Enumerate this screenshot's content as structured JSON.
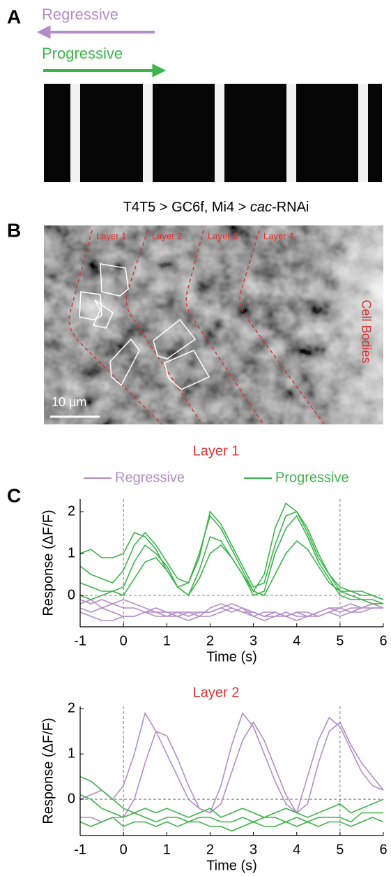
{
  "panel_a": {
    "label": "A",
    "regressive": "Regressive",
    "progressive": "Progressive",
    "regressive_color": "#b48cc8",
    "progressive_color": "#3cb44a"
  },
  "panel_b": {
    "label": "B",
    "title_prefix": "T4T5 > GC6f, Mi4 > ",
    "title_italic": "cac",
    "title_suffix": "-RNAi",
    "layers": [
      "Layer 1",
      "Layer 2",
      "Layer 3",
      "Layer 4"
    ],
    "cell_bodies": "Cell Bodies",
    "scale_bar": "10 µm"
  },
  "panel_c": {
    "label": "C"
  },
  "chart_data": [
    {
      "type": "line",
      "title": "Layer 1",
      "xlabel": "Time (s)",
      "ylabel": "Response (ΔF/F)",
      "legend": true,
      "x": [
        -1,
        -0.75,
        -0.5,
        -0.25,
        0,
        0.25,
        0.5,
        0.75,
        1,
        1.25,
        1.5,
        1.75,
        2,
        2.25,
        2.5,
        2.75,
        3,
        3.25,
        3.5,
        3.75,
        4,
        4.25,
        4.5,
        4.75,
        5,
        5.25,
        5.5,
        5.75,
        6
      ],
      "xlim": [
        -1,
        6
      ],
      "xticks": [
        -1,
        0,
        1,
        2,
        3,
        4,
        5,
        6
      ],
      "ylim": [
        -0.75,
        2.3
      ],
      "yticks": [
        0,
        1,
        2
      ],
      "vlines": [
        0,
        5
      ],
      "hlines": [
        0
      ],
      "series": [
        {
          "name": "Regressive",
          "color": "#b48cc8",
          "traces": [
            [
              -0.1,
              -0.2,
              -0.1,
              -0.2,
              -0.1,
              -0.2,
              -0.3,
              -0.4,
              -0.4,
              -0.4,
              -0.5,
              -0.4,
              -0.4,
              -0.3,
              -0.2,
              -0.3,
              -0.4,
              -0.5,
              -0.4,
              -0.5,
              -0.4,
              -0.5,
              -0.4,
              -0.3,
              -0.4,
              -0.3,
              -0.3,
              -0.2,
              -0.2
            ],
            [
              -0.2,
              -0.1,
              -0.3,
              -0.4,
              -0.5,
              -0.5,
              -0.4,
              -0.4,
              -0.5,
              -0.4,
              -0.4,
              -0.5,
              -0.3,
              -0.2,
              -0.3,
              -0.4,
              -0.4,
              -0.5,
              -0.5,
              -0.4,
              -0.5,
              -0.5,
              -0.4,
              -0.3,
              -0.3,
              -0.2,
              -0.3,
              -0.3,
              -0.3
            ],
            [
              -0.3,
              -0.4,
              -0.3,
              -0.2,
              -0.3,
              -0.3,
              -0.4,
              -0.3,
              -0.4,
              -0.5,
              -0.4,
              -0.4,
              -0.4,
              -0.3,
              -0.4,
              -0.3,
              -0.5,
              -0.4,
              -0.4,
              -0.5,
              -0.4,
              -0.4,
              -0.5,
              -0.4,
              -0.3,
              -0.4,
              -0.3,
              -0.2,
              -0.3
            ],
            [
              -0.4,
              -0.5,
              -0.6,
              -0.6,
              -0.5,
              -0.5,
              -0.4,
              -0.5,
              -0.5,
              -0.5,
              -0.6,
              -0.5,
              -0.5,
              -0.4,
              -0.3,
              -0.4,
              -0.5,
              -0.6,
              -0.5,
              -0.5,
              -0.6,
              -0.5,
              -0.5,
              -0.4,
              -0.5,
              -0.4,
              -0.4,
              -0.3,
              -0.3
            ]
          ]
        },
        {
          "name": "Progressive",
          "color": "#3cb44a",
          "traces": [
            [
              1.0,
              1.1,
              0.9,
              0.9,
              1.0,
              1.5,
              1.4,
              1.1,
              0.6,
              0.2,
              0.3,
              1.0,
              1.9,
              1.6,
              1.1,
              0.6,
              0.1,
              0.5,
              1.6,
              2.2,
              2.0,
              1.6,
              1.0,
              0.5,
              0.2,
              0.1,
              0.1,
              0.0,
              -0.1
            ],
            [
              0.7,
              0.5,
              0.4,
              0.3,
              0.6,
              1.2,
              1.5,
              1.2,
              0.8,
              0.4,
              0.3,
              0.9,
              2.0,
              1.7,
              1.2,
              0.7,
              0.2,
              0.3,
              1.2,
              1.9,
              2.0,
              1.5,
              0.9,
              0.5,
              0.1,
              0.1,
              0.0,
              0.0,
              -0.1
            ],
            [
              0.3,
              0.2,
              0.1,
              0.1,
              0.2,
              0.8,
              1.2,
              1.0,
              0.7,
              0.2,
              0.0,
              0.6,
              1.4,
              1.3,
              0.9,
              0.5,
              0.0,
              0.1,
              1.0,
              1.6,
              1.9,
              1.4,
              0.8,
              0.4,
              0.0,
              -0.1,
              -0.1,
              -0.2,
              -0.2
            ],
            [
              0.0,
              -0.1,
              0.0,
              0.1,
              0.0,
              0.4,
              0.8,
              0.9,
              0.6,
              0.2,
              0.0,
              0.4,
              1.0,
              1.2,
              0.9,
              0.5,
              0.1,
              0.0,
              0.5,
              1.0,
              1.3,
              1.1,
              0.7,
              0.3,
              0.1,
              0.0,
              -0.1,
              -0.1,
              -0.2
            ]
          ]
        }
      ]
    },
    {
      "type": "line",
      "title": "Layer 2",
      "xlabel": "Time (s)",
      "ylabel": "Response (ΔF/F)",
      "legend": false,
      "x": [
        -1,
        -0.75,
        -0.5,
        -0.25,
        0,
        0.25,
        0.5,
        0.75,
        1,
        1.25,
        1.5,
        1.75,
        2,
        2.25,
        2.5,
        2.75,
        3,
        3.25,
        3.5,
        3.75,
        4,
        4.25,
        4.5,
        4.75,
        5,
        5.25,
        5.5,
        5.75,
        6
      ],
      "xlim": [
        -1,
        6
      ],
      "xticks": [
        -1,
        0,
        1,
        2,
        3,
        4,
        5,
        6
      ],
      "ylim": [
        -0.8,
        2.05
      ],
      "yticks": [
        0,
        1,
        2
      ],
      "vlines": [
        0,
        5
      ],
      "hlines": [
        0
      ],
      "series": [
        {
          "color": "#b48cc8",
          "traces": [
            [
              0.0,
              0.1,
              0.2,
              0.0,
              0.3,
              1.0,
              1.9,
              1.5,
              1.0,
              0.5,
              0.0,
              -0.2,
              -0.3,
              0.3,
              1.2,
              1.9,
              1.6,
              1.0,
              0.4,
              -0.1,
              -0.3,
              0.5,
              1.3,
              1.8,
              1.6,
              1.1,
              0.6,
              0.3,
              0.2
            ],
            [
              -0.4,
              -0.4,
              -0.5,
              -0.4,
              -0.4,
              0.0,
              0.8,
              1.5,
              1.4,
              0.9,
              0.3,
              -0.2,
              -0.3,
              -0.1,
              0.6,
              1.3,
              1.7,
              1.3,
              0.7,
              0.1,
              -0.3,
              -0.1,
              0.8,
              1.5,
              1.7,
              1.2,
              0.8,
              0.5,
              0.2
            ]
          ]
        },
        {
          "color": "#3cb44a",
          "traces": [
            [
              0.5,
              0.4,
              0.2,
              0.0,
              -0.2,
              -0.3,
              -0.2,
              -0.3,
              -0.2,
              -0.3,
              -0.4,
              -0.3,
              -0.2,
              -0.4,
              -0.3,
              -0.2,
              -0.3,
              -0.4,
              -0.3,
              -0.2,
              -0.3,
              -0.4,
              -0.3,
              -0.2,
              -0.1,
              -0.3,
              -0.2,
              -0.1,
              0.0
            ],
            [
              0.1,
              0.0,
              -0.2,
              -0.3,
              -0.4,
              -0.3,
              -0.4,
              -0.5,
              -0.4,
              -0.4,
              -0.5,
              -0.4,
              -0.4,
              -0.5,
              -0.5,
              -0.4,
              -0.5,
              -0.4,
              -0.4,
              -0.5,
              -0.4,
              -0.5,
              -0.4,
              -0.4,
              -0.4,
              -0.5,
              -0.3,
              -0.3,
              -0.3
            ],
            [
              -0.5,
              -0.6,
              -0.5,
              -0.4,
              -0.6,
              -0.5,
              -0.5,
              -0.6,
              -0.5,
              -0.6,
              -0.5,
              -0.5,
              -0.6,
              -0.6,
              -0.7,
              -0.6,
              -0.5,
              -0.6,
              -0.6,
              -0.5,
              -0.6,
              -0.5,
              -0.6,
              -0.5,
              -0.5,
              -0.6,
              -0.5,
              -0.4,
              -0.5
            ]
          ]
        }
      ]
    }
  ]
}
